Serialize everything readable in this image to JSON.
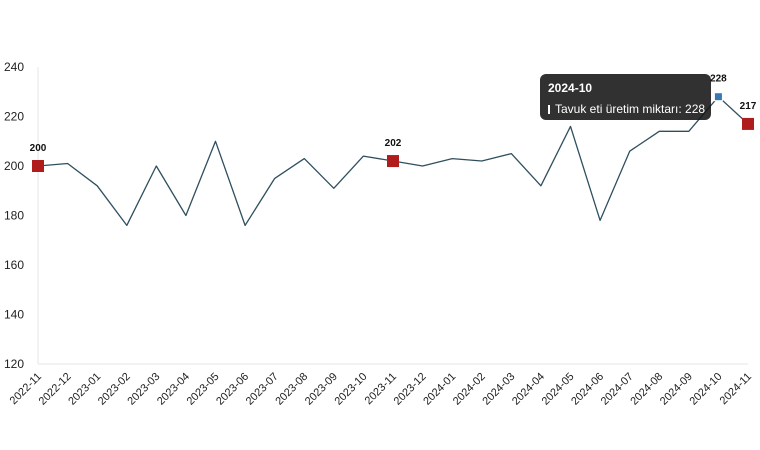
{
  "chart_data": {
    "type": "line",
    "categories": [
      "2022-11",
      "2022-12",
      "2023-01",
      "2023-02",
      "2023-03",
      "2023-04",
      "2023-05",
      "2023-06",
      "2023-07",
      "2023-08",
      "2023-09",
      "2023-10",
      "2023-11",
      "2023-12",
      "2024-01",
      "2024-02",
      "2024-03",
      "2024-04",
      "2024-05",
      "2024-06",
      "2024-07",
      "2024-08",
      "2024-09",
      "2024-10",
      "2024-11"
    ],
    "series": [
      {
        "name": "Tavuk eti üretim miktarı",
        "values": [
          200,
          201,
          192,
          176,
          200,
          180,
          210,
          176,
          195,
          203,
          191,
          204,
          202,
          200,
          203,
          202,
          205,
          192,
          216,
          178,
          206,
          214,
          214,
          228,
          217
        ]
      }
    ],
    "ylim": [
      120,
      240
    ],
    "yticks": [
      120,
      140,
      160,
      180,
      200,
      220,
      240
    ],
    "grid": false,
    "line_color": "#2f4f5f",
    "marker_color": "#b01c1c",
    "highlight_color": "#3a78b4",
    "labeled_points": [
      {
        "index": 0,
        "label": "200"
      },
      {
        "index": 12,
        "label": "202"
      },
      {
        "index": 23,
        "label": "228"
      },
      {
        "index": 24,
        "label": "217"
      }
    ],
    "tooltip": {
      "title": "2024-10",
      "series_label": "Tavuk eti üretim miktarı",
      "value_text": "228",
      "swatch_color": "#3a78b4"
    }
  }
}
